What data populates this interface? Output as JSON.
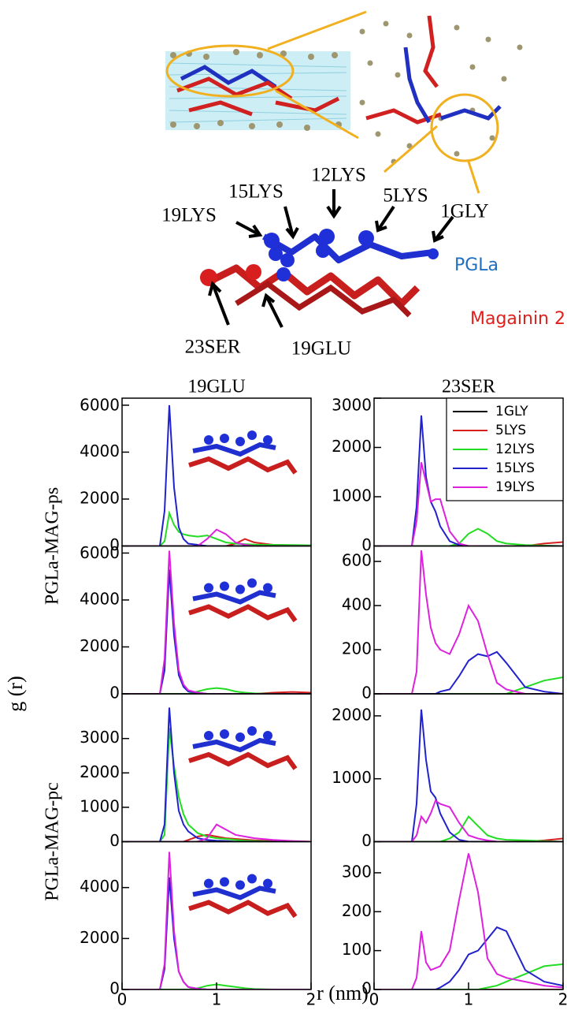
{
  "figure": {
    "molecule_labels": [
      "19LYS",
      "15LYS",
      "12LYS",
      "5LYS",
      "1GLY",
      "23SER",
      "19GLU"
    ],
    "peptides": [
      {
        "name": "PGLa",
        "color": "#1f6fc0"
      },
      {
        "name": "Magainin 2",
        "color": "#e0201c"
      }
    ],
    "ylabel": "g (r)",
    "xlabel": "r (nm)"
  },
  "chart_data": [
    {
      "type": "line",
      "title": "19GLU",
      "ylabel": "PGLa-MAG-ps",
      "xlim": [
        0,
        2
      ],
      "ylim": [
        0,
        6300
      ],
      "yticks": [
        0,
        2000,
        4000,
        6000
      ],
      "x": [
        0,
        0.4,
        0.45,
        0.5,
        0.55,
        0.6,
        0.65,
        0.7,
        0.8,
        0.9,
        1.0,
        1.1,
        1.2,
        1.3,
        1.4,
        1.6,
        1.8,
        2.0
      ],
      "series": [
        {
          "color": "#000000",
          "values": [
            0,
            0,
            0,
            0,
            0,
            0,
            0,
            0,
            0,
            0,
            0,
            0,
            0,
            0,
            0,
            0,
            0,
            0
          ]
        },
        {
          "color": "#d62020",
          "values": [
            0,
            0,
            0,
            0,
            0,
            0,
            0,
            0,
            0,
            0,
            0,
            0,
            100,
            300,
            150,
            50,
            30,
            0
          ]
        },
        {
          "color": "#22dd22",
          "values": [
            0,
            0,
            200,
            1400,
            900,
            600,
            500,
            450,
            400,
            450,
            300,
            150,
            100,
            80,
            60,
            50,
            40,
            30
          ]
        },
        {
          "color": "#2222cc",
          "values": [
            0,
            0,
            1500,
            6000,
            2500,
            800,
            300,
            100,
            50,
            0,
            0,
            0,
            0,
            0,
            0,
            0,
            0,
            0
          ]
        },
        {
          "color": "#dd22dd",
          "values": [
            0,
            0,
            0,
            0,
            0,
            0,
            0,
            0,
            0,
            300,
            700,
            500,
            150,
            50,
            0,
            0,
            0,
            0
          ]
        }
      ]
    },
    {
      "type": "line",
      "title": "23SER",
      "legend": "upper right",
      "xlim": [
        0,
        2
      ],
      "ylim": [
        0,
        3000
      ],
      "yticks": [
        0,
        1000,
        2000,
        3000
      ],
      "x": [
        0,
        0.4,
        0.45,
        0.5,
        0.55,
        0.6,
        0.65,
        0.7,
        0.8,
        0.9,
        1.0,
        1.1,
        1.2,
        1.3,
        1.4,
        1.6,
        1.8,
        2.0
      ],
      "series": [
        {
          "name": "1GLY",
          "color": "#000000",
          "values": [
            0,
            0,
            0,
            0,
            0,
            0,
            0,
            0,
            0,
            0,
            0,
            0,
            0,
            0,
            0,
            0,
            0,
            0
          ]
        },
        {
          "name": "5LYS",
          "color": "#d62020",
          "values": [
            0,
            0,
            0,
            0,
            0,
            0,
            0,
            0,
            0,
            0,
            0,
            0,
            0,
            0,
            0,
            0,
            50,
            80
          ]
        },
        {
          "name": "12LYS",
          "color": "#22dd22",
          "values": [
            0,
            0,
            0,
            0,
            0,
            0,
            0,
            0,
            0,
            50,
            250,
            350,
            250,
            100,
            50,
            20,
            10,
            0
          ]
        },
        {
          "name": "15LYS",
          "color": "#2222cc",
          "values": [
            0,
            0,
            800,
            2650,
            1400,
            900,
            700,
            400,
            100,
            20,
            0,
            0,
            0,
            0,
            0,
            0,
            0,
            0
          ]
        },
        {
          "name": "19LYS",
          "color": "#dd22dd",
          "values": [
            0,
            0,
            500,
            1700,
            1300,
            900,
            950,
            950,
            300,
            50,
            0,
            0,
            0,
            0,
            0,
            0,
            0,
            0
          ]
        }
      ]
    },
    {
      "type": "line",
      "xlim": [
        0,
        2
      ],
      "ylim": [
        0,
        6300
      ],
      "yticks": [
        0,
        2000,
        4000,
        6000
      ],
      "x": [
        0,
        0.4,
        0.45,
        0.5,
        0.55,
        0.6,
        0.65,
        0.7,
        0.8,
        0.9,
        1.0,
        1.1,
        1.2,
        1.3,
        1.4,
        1.6,
        1.8,
        2.0
      ],
      "series": [
        {
          "color": "#000000",
          "values": [
            0,
            0,
            0,
            0,
            0,
            0,
            0,
            0,
            0,
            0,
            0,
            0,
            0,
            0,
            0,
            0,
            0,
            0
          ]
        },
        {
          "color": "#d62020",
          "values": [
            0,
            0,
            0,
            0,
            0,
            0,
            0,
            0,
            0,
            0,
            0,
            0,
            0,
            0,
            0,
            50,
            80,
            50
          ]
        },
        {
          "color": "#22dd22",
          "values": [
            0,
            0,
            0,
            0,
            0,
            0,
            0,
            0,
            100,
            200,
            250,
            200,
            100,
            50,
            20,
            0,
            0,
            0
          ]
        },
        {
          "color": "#2222cc",
          "values": [
            0,
            0,
            1000,
            5300,
            2500,
            800,
            300,
            100,
            50,
            0,
            0,
            0,
            0,
            0,
            0,
            0,
            0,
            0
          ]
        },
        {
          "color": "#dd22dd",
          "values": [
            0,
            0,
            1500,
            6100,
            3000,
            1000,
            400,
            150,
            50,
            0,
            0,
            0,
            0,
            0,
            0,
            0,
            0,
            0
          ]
        }
      ]
    },
    {
      "type": "line",
      "xlim": [
        0,
        2
      ],
      "ylim": [
        0,
        670
      ],
      "yticks": [
        0,
        200,
        400,
        600
      ],
      "x": [
        0,
        0.4,
        0.45,
        0.5,
        0.55,
        0.6,
        0.65,
        0.7,
        0.8,
        0.9,
        1.0,
        1.1,
        1.2,
        1.3,
        1.4,
        1.6,
        1.8,
        2.0
      ],
      "series": [
        {
          "color": "#000000",
          "values": [
            0,
            0,
            0,
            0,
            0,
            0,
            0,
            0,
            0,
            0,
            0,
            0,
            0,
            0,
            0,
            0,
            0,
            0
          ]
        },
        {
          "color": "#d62020",
          "values": [
            0,
            0,
            0,
            0,
            0,
            0,
            0,
            0,
            0,
            0,
            0,
            0,
            0,
            0,
            0,
            0,
            0,
            0
          ]
        },
        {
          "color": "#22dd22",
          "values": [
            0,
            0,
            0,
            0,
            0,
            0,
            0,
            0,
            0,
            0,
            0,
            0,
            0,
            0,
            0,
            30,
            60,
            75
          ]
        },
        {
          "color": "#2222cc",
          "values": [
            0,
            0,
            0,
            0,
            0,
            0,
            0,
            10,
            20,
            80,
            150,
            180,
            170,
            190,
            140,
            30,
            10,
            0
          ]
        },
        {
          "color": "#dd22dd",
          "values": [
            0,
            0,
            100,
            650,
            450,
            300,
            230,
            200,
            180,
            270,
            400,
            330,
            180,
            50,
            20,
            0,
            0,
            0
          ]
        }
      ]
    },
    {
      "type": "line",
      "ylabel": "PGLa-MAG-pc",
      "xlim": [
        0,
        2
      ],
      "ylim": [
        0,
        4300
      ],
      "yticks": [
        0,
        1000,
        2000,
        3000
      ],
      "x": [
        0,
        0.4,
        0.45,
        0.5,
        0.55,
        0.6,
        0.65,
        0.7,
        0.8,
        0.9,
        1.0,
        1.1,
        1.2,
        1.3,
        1.4,
        1.6,
        1.8,
        2.0
      ],
      "series": [
        {
          "color": "#000000",
          "values": [
            0,
            0,
            0,
            0,
            0,
            0,
            0,
            0,
            0,
            0,
            0,
            0,
            0,
            0,
            0,
            0,
            0,
            0
          ]
        },
        {
          "color": "#d62020",
          "values": [
            0,
            0,
            0,
            0,
            0,
            0,
            0,
            50,
            150,
            200,
            150,
            100,
            80,
            60,
            40,
            20,
            10,
            0
          ]
        },
        {
          "color": "#22dd22",
          "values": [
            0,
            0,
            200,
            3300,
            2200,
            1300,
            800,
            500,
            250,
            150,
            100,
            80,
            50,
            30,
            20,
            0,
            0,
            0
          ]
        },
        {
          "color": "#2222cc",
          "values": [
            0,
            0,
            500,
            3900,
            2000,
            900,
            500,
            300,
            100,
            50,
            30,
            20,
            0,
            0,
            0,
            0,
            0,
            0
          ]
        },
        {
          "color": "#dd22dd",
          "values": [
            0,
            0,
            0,
            0,
            0,
            0,
            0,
            0,
            0,
            100,
            500,
            350,
            200,
            150,
            100,
            50,
            20,
            0
          ]
        }
      ]
    },
    {
      "type": "line",
      "xlim": [
        0,
        2
      ],
      "ylim": [
        0,
        2350
      ],
      "yticks": [
        0,
        1000,
        2000
      ],
      "x": [
        0,
        0.4,
        0.45,
        0.5,
        0.55,
        0.6,
        0.65,
        0.7,
        0.8,
        0.9,
        1.0,
        1.1,
        1.2,
        1.3,
        1.4,
        1.6,
        1.8,
        2.0
      ],
      "series": [
        {
          "color": "#000000",
          "values": [
            0,
            0,
            0,
            0,
            0,
            0,
            0,
            0,
            0,
            0,
            0,
            0,
            0,
            0,
            0,
            0,
            0,
            0
          ]
        },
        {
          "color": "#d62020",
          "values": [
            0,
            0,
            0,
            0,
            0,
            0,
            0,
            0,
            0,
            0,
            0,
            0,
            0,
            0,
            0,
            0,
            20,
            50
          ]
        },
        {
          "color": "#22dd22",
          "values": [
            0,
            0,
            0,
            0,
            0,
            0,
            0,
            0,
            50,
            150,
            400,
            250,
            100,
            50,
            30,
            20,
            10,
            0
          ]
        },
        {
          "color": "#2222cc",
          "values": [
            0,
            0,
            600,
            2100,
            1300,
            800,
            700,
            450,
            150,
            30,
            0,
            0,
            0,
            0,
            0,
            0,
            0,
            0
          ]
        },
        {
          "color": "#dd22dd",
          "values": [
            0,
            0,
            100,
            400,
            300,
            450,
            650,
            600,
            550,
            300,
            100,
            50,
            20,
            0,
            0,
            0,
            0,
            0
          ]
        }
      ]
    },
    {
      "type": "line",
      "xlim": [
        0,
        2
      ],
      "ylim": [
        0,
        5800
      ],
      "yticks": [
        0,
        2000,
        4000
      ],
      "xticks": [
        0,
        1,
        2
      ],
      "x": [
        0,
        0.4,
        0.45,
        0.5,
        0.55,
        0.6,
        0.65,
        0.7,
        0.8,
        0.9,
        1.0,
        1.1,
        1.2,
        1.3,
        1.4,
        1.6,
        1.8,
        2.0
      ],
      "series": [
        {
          "color": "#000000",
          "values": [
            0,
            0,
            0,
            0,
            0,
            0,
            0,
            0,
            0,
            0,
            0,
            0,
            0,
            0,
            0,
            0,
            0,
            0
          ]
        },
        {
          "color": "#d62020",
          "values": [
            0,
            0,
            0,
            0,
            0,
            0,
            0,
            0,
            0,
            0,
            0,
            0,
            0,
            0,
            0,
            0,
            0,
            0
          ]
        },
        {
          "color": "#22dd22",
          "values": [
            0,
            0,
            0,
            0,
            0,
            0,
            0,
            0,
            50,
            150,
            200,
            150,
            100,
            50,
            20,
            0,
            0,
            0
          ]
        },
        {
          "color": "#2222cc",
          "values": [
            0,
            0,
            800,
            4400,
            2000,
            700,
            300,
            100,
            30,
            0,
            0,
            0,
            0,
            0,
            0,
            0,
            0,
            0
          ]
        },
        {
          "color": "#dd22dd",
          "values": [
            0,
            0,
            1000,
            5400,
            2300,
            700,
            300,
            100,
            30,
            0,
            0,
            0,
            0,
            0,
            0,
            0,
            0,
            0
          ]
        }
      ]
    },
    {
      "type": "line",
      "xlim": [
        0,
        2
      ],
      "ylim": [
        0,
        380
      ],
      "yticks": [
        0,
        100,
        200,
        300
      ],
      "xticks": [
        0,
        1,
        2
      ],
      "x": [
        0,
        0.4,
        0.45,
        0.5,
        0.55,
        0.6,
        0.65,
        0.7,
        0.8,
        0.9,
        1.0,
        1.1,
        1.2,
        1.3,
        1.4,
        1.6,
        1.8,
        2.0
      ],
      "series": [
        {
          "color": "#000000",
          "values": [
            0,
            0,
            0,
            0,
            0,
            0,
            0,
            0,
            0,
            0,
            0,
            0,
            0,
            0,
            0,
            0,
            0,
            0
          ]
        },
        {
          "color": "#d62020",
          "values": [
            0,
            0,
            0,
            0,
            0,
            0,
            0,
            0,
            0,
            0,
            0,
            0,
            0,
            0,
            0,
            0,
            0,
            0
          ]
        },
        {
          "color": "#22dd22",
          "values": [
            0,
            0,
            0,
            0,
            0,
            0,
            0,
            0,
            0,
            0,
            0,
            0,
            5,
            10,
            20,
            40,
            60,
            65
          ]
        },
        {
          "color": "#2222cc",
          "values": [
            0,
            0,
            0,
            0,
            0,
            0,
            0,
            5,
            20,
            50,
            90,
            100,
            130,
            160,
            150,
            50,
            20,
            10
          ]
        },
        {
          "color": "#dd22dd",
          "values": [
            0,
            0,
            30,
            150,
            70,
            50,
            55,
            60,
            100,
            230,
            350,
            250,
            80,
            40,
            30,
            20,
            10,
            5
          ]
        }
      ]
    }
  ]
}
